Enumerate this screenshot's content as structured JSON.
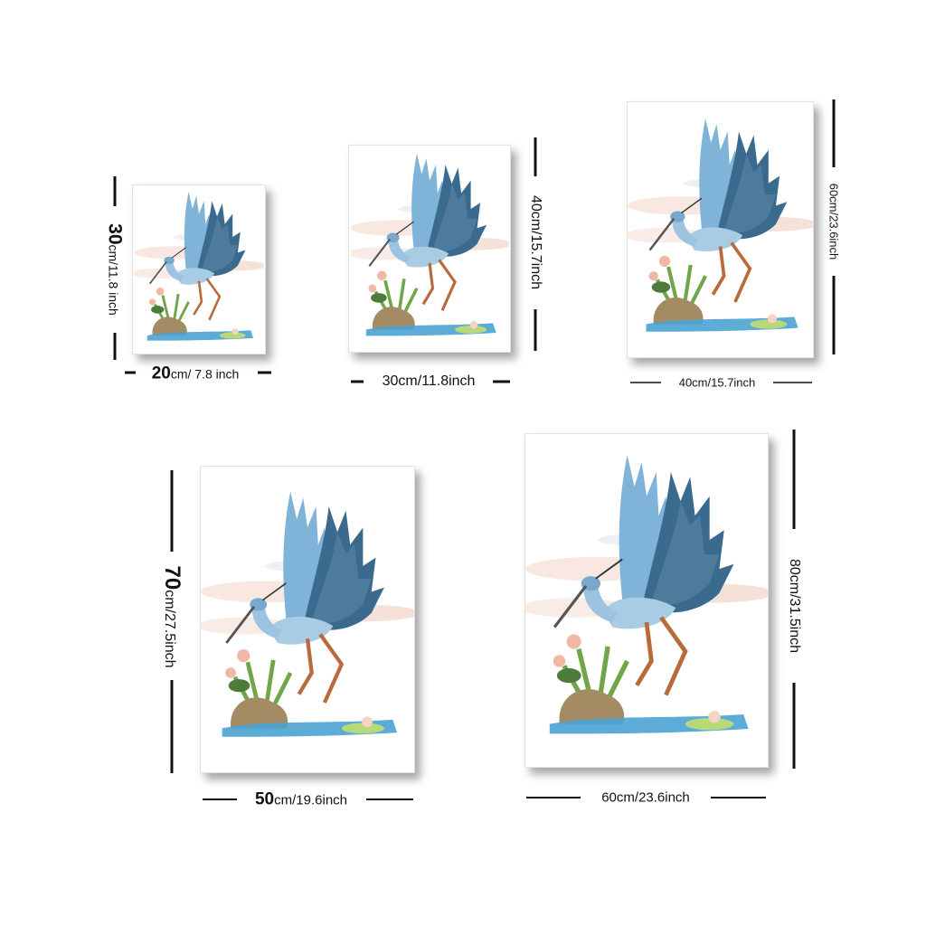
{
  "sizes": [
    {
      "height_big": "30",
      "height_rest": "cm/11.8 inch",
      "width_big": "20",
      "width_rest": "cm/ 7.8 inch"
    },
    {
      "height": "40cm/15.7inch",
      "width": "30cm/11.8inch"
    },
    {
      "height": "60cm/23.6inch",
      "width": "40cm/15.7inch"
    },
    {
      "height_big": "70",
      "height_rest": "cm/27.5inch",
      "width_big": "50",
      "width_rest": "cm/19.6inch"
    },
    {
      "height": "80cm/31.5inch",
      "width": "60cm/23.6inch"
    }
  ],
  "colors": {
    "wing": "#3b6a8f",
    "wing_light": "#7fb3d8",
    "leg": "#b86a3c",
    "rock": "#a58b64",
    "water": "#4aa3d3",
    "leaf": "#6fa64a",
    "cloud": "#f4d9cf"
  },
  "artwork_icon": "heron-painting"
}
